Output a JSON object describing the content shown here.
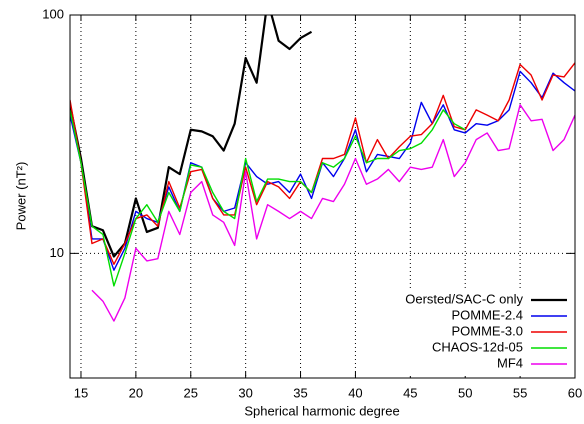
{
  "chart_data": {
    "type": "line",
    "xlabel": "Spherical harmonic degree",
    "ylabel": "Power (nT²)",
    "x": [
      14,
      15,
      16,
      17,
      18,
      19,
      20,
      21,
      22,
      23,
      24,
      25,
      26,
      27,
      28,
      29,
      30,
      31,
      32,
      33,
      34,
      35,
      36,
      37,
      38,
      39,
      40,
      41,
      42,
      43,
      44,
      45,
      46,
      47,
      48,
      49,
      50,
      51,
      52,
      53,
      54,
      55,
      56,
      57,
      58,
      59,
      60
    ],
    "xlim": [
      14,
      60
    ],
    "xticks": [
      15,
      20,
      25,
      30,
      35,
      40,
      45,
      50,
      55,
      60
    ],
    "ylim": [
      3,
      100
    ],
    "yticks": [
      10,
      100
    ],
    "log_y": true,
    "grid": true,
    "legend": "lower right",
    "series": [
      {
        "name": "Oersted/SAC-C only",
        "color": "#000000",
        "values": [
          42,
          25,
          13,
          12.5,
          9.7,
          11,
          17,
          12.3,
          12.8,
          23,
          21.5,
          33,
          32.5,
          31,
          27,
          35,
          66,
          52,
          115,
          78,
          72,
          80,
          85,
          null,
          null,
          null,
          null,
          null,
          null,
          null,
          null,
          null,
          null,
          null,
          null,
          null,
          null,
          null,
          null,
          null,
          null,
          null,
          null,
          null,
          null,
          null,
          null
        ]
      },
      {
        "name": "POMME-2.4",
        "color": "#0000ee",
        "values": [
          38,
          24,
          11.5,
          11.5,
          8.5,
          10.5,
          15,
          14,
          13.5,
          19,
          15,
          24,
          23,
          17,
          15,
          15.5,
          24,
          21,
          19.5,
          20,
          18,
          21.5,
          17,
          24,
          21,
          25,
          33,
          22,
          26,
          25.5,
          25,
          29,
          43,
          35,
          42,
          33,
          32,
          35,
          34.5,
          36,
          40,
          58,
          52,
          45,
          57,
          52,
          48
        ]
      },
      {
        "name": "POMME-3.0",
        "color": "#ee0000",
        "values": [
          44,
          24,
          11,
          11.5,
          9,
          11,
          14,
          14.5,
          13,
          20,
          15.5,
          22,
          22.5,
          17,
          14.5,
          14.5,
          23,
          16,
          20,
          19,
          17,
          20,
          18,
          25,
          25,
          26,
          37,
          24,
          30,
          25,
          28,
          31,
          31.5,
          35,
          46,
          34,
          33,
          40,
          38,
          36,
          44,
          62,
          56,
          44,
          56,
          55,
          63
        ]
      },
      {
        "name": "CHAOS-12d-05",
        "color": "#00dd00",
        "values": [
          40,
          24,
          13,
          12,
          7.3,
          10,
          14,
          16,
          13.5,
          18,
          15,
          23.5,
          23,
          18,
          15,
          14,
          25,
          16.5,
          20.5,
          20.5,
          20,
          20,
          18,
          24,
          23,
          25,
          31,
          24,
          25,
          25,
          27,
          27.5,
          29,
          33,
          40,
          35,
          33,
          null,
          null,
          null,
          null,
          null,
          null,
          null,
          null,
          null,
          null
        ]
      },
      {
        "name": "MF4",
        "color": "#ee00ee",
        "values": [
          null,
          null,
          7,
          6.3,
          5.2,
          6.5,
          10.5,
          9.3,
          9.5,
          15,
          12,
          18,
          20,
          14.5,
          13.5,
          10.8,
          22,
          11.5,
          16,
          15,
          14,
          15,
          14,
          17,
          16.5,
          19.5,
          25,
          19.5,
          20.5,
          22.5,
          20,
          23,
          22.5,
          23,
          30,
          21,
          24,
          30,
          32,
          27,
          27.5,
          42,
          36,
          36.5,
          27,
          30,
          38
        ]
      }
    ]
  }
}
